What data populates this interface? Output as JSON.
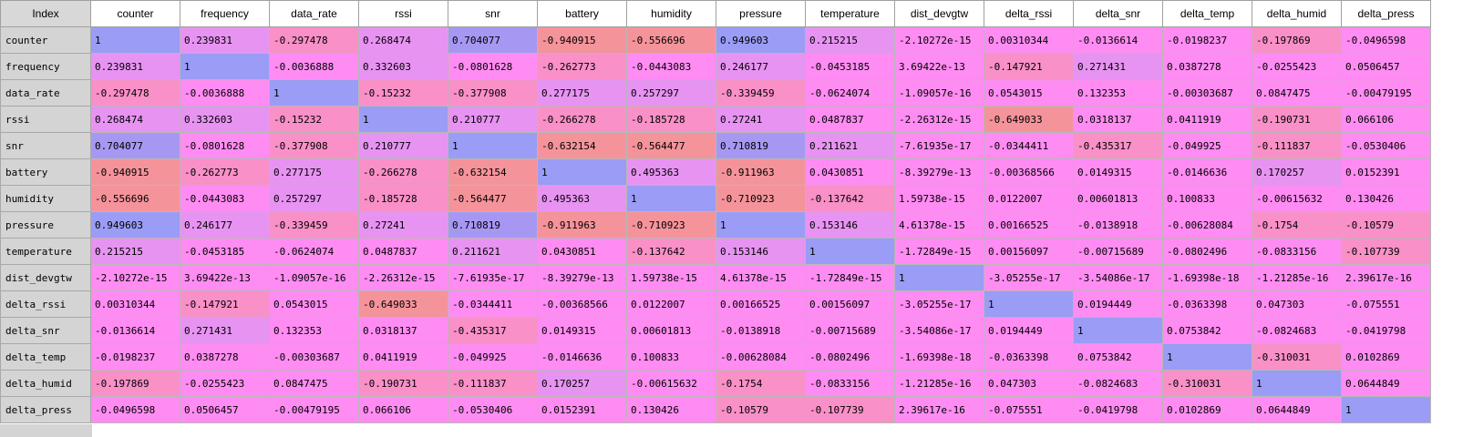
{
  "index_header": "Index",
  "columns": [
    "counter",
    "frequency",
    "data_rate",
    "rssi",
    "snr",
    "battery",
    "humidity",
    "pressure",
    "temperature",
    "dist_devgtw",
    "delta_rssi",
    "delta_snr",
    "delta_temp",
    "delta_humid",
    "delta_press"
  ],
  "rows": [
    {
      "label": "counter",
      "values": [
        "1",
        "0.239831",
        "-0.297478",
        "0.268474",
        "0.704077",
        "-0.940915",
        "-0.556696",
        "0.949603",
        "0.215215",
        "-2.10272e-15",
        "0.00310344",
        "-0.0136614",
        "-0.0198237",
        "-0.197869",
        "-0.0496598"
      ],
      "num": [
        1,
        0.239831,
        -0.297478,
        0.268474,
        0.704077,
        -0.940915,
        -0.556696,
        0.949603,
        0.215215,
        0,
        0.00310344,
        -0.0136614,
        -0.0198237,
        -0.197869,
        -0.0496598
      ]
    },
    {
      "label": "frequency",
      "values": [
        "0.239831",
        "1",
        "-0.0036888",
        "0.332603",
        "-0.0801628",
        "-0.262773",
        "-0.0443083",
        "0.246177",
        "-0.0453185",
        "3.69422e-13",
        "-0.147921",
        "0.271431",
        "0.0387278",
        "-0.0255423",
        "0.0506457"
      ],
      "num": [
        0.239831,
        1,
        -0.0036888,
        0.332603,
        -0.0801628,
        -0.262773,
        -0.0443083,
        0.246177,
        -0.0453185,
        0,
        -0.147921,
        0.271431,
        0.0387278,
        -0.0255423,
        0.0506457
      ]
    },
    {
      "label": "data_rate",
      "values": [
        "-0.297478",
        "-0.0036888",
        "1",
        "-0.15232",
        "-0.377908",
        "0.277175",
        "0.257297",
        "-0.339459",
        "-0.0624074",
        "-1.09057e-16",
        "0.0543015",
        "0.132353",
        "-0.00303687",
        "0.0847475",
        "-0.00479195"
      ],
      "num": [
        -0.297478,
        -0.0036888,
        1,
        -0.15232,
        -0.377908,
        0.277175,
        0.257297,
        -0.339459,
        -0.0624074,
        0,
        0.0543015,
        0.132353,
        -0.00303687,
        0.0847475,
        -0.00479195
      ]
    },
    {
      "label": "rssi",
      "values": [
        "0.268474",
        "0.332603",
        "-0.15232",
        "1",
        "0.210777",
        "-0.266278",
        "-0.185728",
        "0.27241",
        "0.0487837",
        "-2.26312e-15",
        "-0.649033",
        "0.0318137",
        "0.0411919",
        "-0.190731",
        "0.066106"
      ],
      "num": [
        0.268474,
        0.332603,
        -0.15232,
        1,
        0.210777,
        -0.266278,
        -0.185728,
        0.27241,
        0.0487837,
        0,
        -0.649033,
        0.0318137,
        0.0411919,
        -0.190731,
        0.066106
      ]
    },
    {
      "label": "snr",
      "values": [
        "0.704077",
        "-0.0801628",
        "-0.377908",
        "0.210777",
        "1",
        "-0.632154",
        "-0.564477",
        "0.710819",
        "0.211621",
        "-7.61935e-17",
        "-0.0344411",
        "-0.435317",
        "-0.049925",
        "-0.111837",
        "-0.0530406"
      ],
      "num": [
        0.704077,
        -0.0801628,
        -0.377908,
        0.210777,
        1,
        -0.632154,
        -0.564477,
        0.710819,
        0.211621,
        0,
        -0.0344411,
        -0.435317,
        -0.049925,
        -0.111837,
        -0.0530406
      ]
    },
    {
      "label": "battery",
      "values": [
        "-0.940915",
        "-0.262773",
        "0.277175",
        "-0.266278",
        "-0.632154",
        "1",
        "0.495363",
        "-0.911963",
        "0.0430851",
        "-8.39279e-13",
        "-0.00368566",
        "0.0149315",
        "-0.0146636",
        "0.170257",
        "0.0152391"
      ],
      "num": [
        -0.940915,
        -0.262773,
        0.277175,
        -0.266278,
        -0.632154,
        1,
        0.495363,
        -0.911963,
        0.0430851,
        0,
        -0.00368566,
        0.0149315,
        -0.0146636,
        0.170257,
        0.0152391
      ]
    },
    {
      "label": "humidity",
      "values": [
        "-0.556696",
        "-0.0443083",
        "0.257297",
        "-0.185728",
        "-0.564477",
        "0.495363",
        "1",
        "-0.710923",
        "-0.137642",
        "1.59738e-15",
        "0.0122007",
        "0.00601813",
        "0.100833",
        "-0.00615632",
        "0.130426"
      ],
      "num": [
        -0.556696,
        -0.0443083,
        0.257297,
        -0.185728,
        -0.564477,
        0.495363,
        1,
        -0.710923,
        -0.137642,
        0,
        0.0122007,
        0.00601813,
        0.100833,
        -0.00615632,
        0.130426
      ]
    },
    {
      "label": "pressure",
      "values": [
        "0.949603",
        "0.246177",
        "-0.339459",
        "0.27241",
        "0.710819",
        "-0.911963",
        "-0.710923",
        "1",
        "0.153146",
        "4.61378e-15",
        "0.00166525",
        "-0.0138918",
        "-0.00628084",
        "-0.1754",
        "-0.10579"
      ],
      "num": [
        0.949603,
        0.246177,
        -0.339459,
        0.27241,
        0.710819,
        -0.911963,
        -0.710923,
        1,
        0.153146,
        0,
        0.00166525,
        -0.0138918,
        -0.00628084,
        -0.1754,
        -0.10579
      ]
    },
    {
      "label": "temperature",
      "values": [
        "0.215215",
        "-0.0453185",
        "-0.0624074",
        "0.0487837",
        "0.211621",
        "0.0430851",
        "-0.137642",
        "0.153146",
        "1",
        "-1.72849e-15",
        "0.00156097",
        "-0.00715689",
        "-0.0802496",
        "-0.0833156",
        "-0.107739"
      ],
      "num": [
        0.215215,
        -0.0453185,
        -0.0624074,
        0.0487837,
        0.211621,
        0.0430851,
        -0.137642,
        0.153146,
        1,
        0,
        0.00156097,
        -0.00715689,
        -0.0802496,
        -0.0833156,
        -0.107739
      ]
    },
    {
      "label": "dist_devgtw",
      "values": [
        "-2.10272e-15",
        "3.69422e-13",
        "-1.09057e-16",
        "-2.26312e-15",
        "-7.61935e-17",
        "-8.39279e-13",
        "1.59738e-15",
        "4.61378e-15",
        "-1.72849e-15",
        "1",
        "-3.05255e-17",
        "-3.54086e-17",
        "-1.69398e-18",
        "-1.21285e-16",
        "2.39617e-16"
      ],
      "num": [
        0,
        0,
        0,
        0,
        0,
        0,
        0,
        0,
        0,
        1,
        0,
        0,
        0,
        0,
        0
      ]
    },
    {
      "label": "delta_rssi",
      "values": [
        "0.00310344",
        "-0.147921",
        "0.0543015",
        "-0.649033",
        "-0.0344411",
        "-0.00368566",
        "0.0122007",
        "0.00166525",
        "0.00156097",
        "-3.05255e-17",
        "1",
        "0.0194449",
        "-0.0363398",
        "0.047303",
        "-0.075551"
      ],
      "num": [
        0.00310344,
        -0.147921,
        0.0543015,
        -0.649033,
        -0.0344411,
        -0.00368566,
        0.0122007,
        0.00166525,
        0.00156097,
        0,
        1,
        0.0194449,
        -0.0363398,
        0.047303,
        -0.075551
      ]
    },
    {
      "label": "delta_snr",
      "values": [
        "-0.0136614",
        "0.271431",
        "0.132353",
        "0.0318137",
        "-0.435317",
        "0.0149315",
        "0.00601813",
        "-0.0138918",
        "-0.00715689",
        "-3.54086e-17",
        "0.0194449",
        "1",
        "0.0753842",
        "-0.0824683",
        "-0.0419798"
      ],
      "num": [
        -0.0136614,
        0.271431,
        0.132353,
        0.0318137,
        -0.435317,
        0.0149315,
        0.00601813,
        -0.0138918,
        -0.00715689,
        0,
        0.0194449,
        1,
        0.0753842,
        -0.0824683,
        -0.0419798
      ]
    },
    {
      "label": "delta_temp",
      "values": [
        "-0.0198237",
        "0.0387278",
        "-0.00303687",
        "0.0411919",
        "-0.049925",
        "-0.0146636",
        "0.100833",
        "-0.00628084",
        "-0.0802496",
        "-1.69398e-18",
        "-0.0363398",
        "0.0753842",
        "1",
        "-0.310031",
        "0.0102869"
      ],
      "num": [
        -0.0198237,
        0.0387278,
        -0.00303687,
        0.0411919,
        -0.049925,
        -0.0146636,
        0.100833,
        -0.00628084,
        -0.0802496,
        0,
        -0.0363398,
        0.0753842,
        1,
        -0.310031,
        0.0102869
      ]
    },
    {
      "label": "delta_humid",
      "values": [
        "-0.197869",
        "-0.0255423",
        "0.0847475",
        "-0.190731",
        "-0.111837",
        "0.170257",
        "-0.00615632",
        "-0.1754",
        "-0.0833156",
        "-1.21285e-16",
        "0.047303",
        "-0.0824683",
        "-0.310031",
        "1",
        "0.0644849"
      ],
      "num": [
        -0.197869,
        -0.0255423,
        0.0847475,
        -0.190731,
        -0.111837,
        0.170257,
        -0.00615632,
        -0.1754,
        -0.0833156,
        0,
        0.047303,
        -0.0824683,
        -0.310031,
        1,
        0.0644849
      ]
    },
    {
      "label": "delta_press",
      "values": [
        "-0.0496598",
        "0.0506457",
        "-0.00479195",
        "0.066106",
        "-0.0530406",
        "0.0152391",
        "0.130426",
        "-0.10579",
        "-0.107739",
        "2.39617e-16",
        "-0.075551",
        "-0.0419798",
        "0.0102869",
        "0.0644849",
        "1"
      ],
      "num": [
        -0.0496598,
        0.0506457,
        -0.00479195,
        0.066106,
        -0.0530406,
        0.0152391,
        0.130426,
        -0.10579,
        -0.107739,
        0,
        -0.075551,
        -0.0419798,
        0.0102869,
        0.0644849,
        1
      ]
    }
  ],
  "colors": {
    "diagonal": "#9a9cf5",
    "high_positive": "#a698f2",
    "mid_positive": "#e793f2",
    "near_zero": "#ff8cf2",
    "mid_negative": "#f990c8",
    "strong_negative": "#f5939a",
    "index_background": "#d4d4d4",
    "header_background": "#ffffff"
  }
}
